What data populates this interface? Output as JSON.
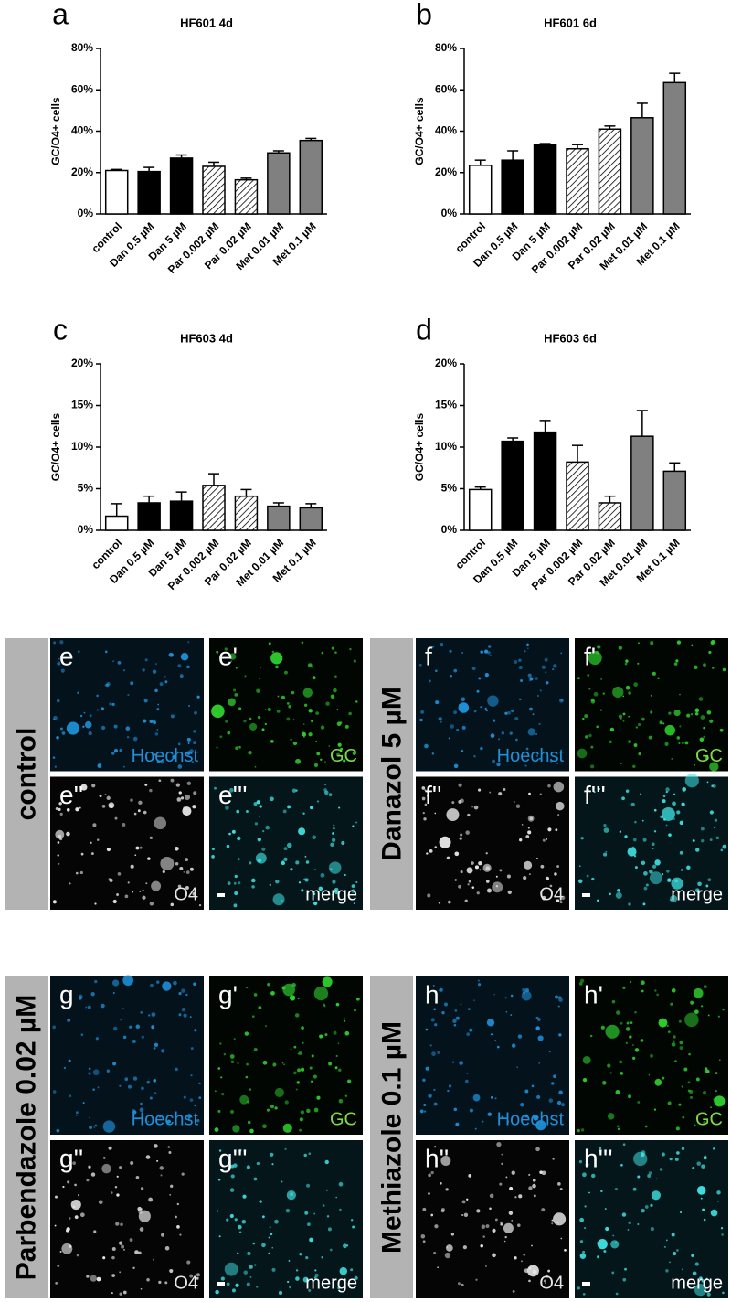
{
  "chart_data": [
    {
      "type": "bar",
      "panel": "a",
      "title": "HF601 4d",
      "y_label": "GC/O4+ cells",
      "categories": [
        "control",
        "Dan 0.5 µM",
        "Dan 5 µM",
        "Par 0.002 µM",
        "Par 0.02 µM",
        "Met 0.01 µM",
        "Met 0.1 µM"
      ],
      "values": [
        21,
        20.5,
        27,
        23,
        16.5,
        29.5,
        35.5
      ],
      "errors": [
        0.5,
        2,
        1.5,
        2,
        0.8,
        1,
        1
      ],
      "colors": [
        "#ffffff",
        "#000000",
        "#000000",
        "#ffffff",
        "#ffffff",
        "#808080",
        "#808080"
      ],
      "hatch": [
        false,
        false,
        false,
        true,
        true,
        false,
        false
      ],
      "ylim": [
        0,
        80
      ],
      "yticks": [
        {
          "value": 0,
          "label": "0%"
        },
        {
          "value": 20,
          "label": "20%"
        },
        {
          "value": 40,
          "label": "40%"
        },
        {
          "value": 60,
          "label": "60%"
        },
        {
          "value": 80,
          "label": "80%"
        }
      ]
    },
    {
      "type": "bar",
      "panel": "b",
      "title": "HF601 6d",
      "y_label": "GC/O4+ cells",
      "categories": [
        "control",
        "Dan 0.5 µM",
        "Dan 5 µM",
        "Par 0.002 µM",
        "Par 0.02 µM",
        "Met 0.01 µM",
        "Met 0.1 µM"
      ],
      "values": [
        23.5,
        26,
        33.5,
        31.5,
        41,
        46.5,
        63.5
      ],
      "errors": [
        2.5,
        4.5,
        0.5,
        2,
        1.5,
        7,
        4.5
      ],
      "colors": [
        "#ffffff",
        "#000000",
        "#000000",
        "#ffffff",
        "#ffffff",
        "#808080",
        "#808080"
      ],
      "hatch": [
        false,
        false,
        false,
        true,
        true,
        false,
        false
      ],
      "ylim": [
        0,
        80
      ],
      "yticks": [
        {
          "value": 0,
          "label": "0%"
        },
        {
          "value": 20,
          "label": "20%"
        },
        {
          "value": 40,
          "label": "40%"
        },
        {
          "value": 60,
          "label": "60%"
        },
        {
          "value": 80,
          "label": "80%"
        }
      ]
    },
    {
      "type": "bar",
      "panel": "c",
      "title": "HF603 4d",
      "y_label": "GC/O4+ cells",
      "categories": [
        "control",
        "Dan 0.5 µM",
        "Dan 5 µM",
        "Par 0.002 µM",
        "Par 0.02 µM",
        "Met 0.01 µM",
        "Met 0.1 µM"
      ],
      "values": [
        1.7,
        3.3,
        3.5,
        5.4,
        4.1,
        2.9,
        2.7
      ],
      "errors": [
        1.5,
        0.8,
        1.1,
        1.4,
        0.8,
        0.4,
        0.5
      ],
      "colors": [
        "#ffffff",
        "#000000",
        "#000000",
        "#ffffff",
        "#ffffff",
        "#808080",
        "#808080"
      ],
      "hatch": [
        false,
        false,
        false,
        true,
        true,
        false,
        false
      ],
      "ylim": [
        0,
        20
      ],
      "yticks": [
        {
          "value": 0,
          "label": "0%"
        },
        {
          "value": 5,
          "label": "5%"
        },
        {
          "value": 10,
          "label": "10%"
        },
        {
          "value": 15,
          "label": "15%"
        },
        {
          "value": 20,
          "label": "20%"
        }
      ]
    },
    {
      "type": "bar",
      "panel": "d",
      "title": "HF603 6d",
      "y_label": "GC/O4+ cells",
      "categories": [
        "control",
        "Dan 0.5 µM",
        "Dan 5 µM",
        "Par 0.002 µM",
        "Par 0.02 µM",
        "Met 0.01 µM",
        "Met 0.1 µM"
      ],
      "values": [
        4.9,
        10.7,
        11.8,
        8.2,
        3.3,
        11.3,
        7.1
      ],
      "errors": [
        0.3,
        0.4,
        1.4,
        2.0,
        0.8,
        3.1,
        1.0
      ],
      "colors": [
        "#ffffff",
        "#000000",
        "#000000",
        "#ffffff",
        "#ffffff",
        "#808080",
        "#808080"
      ],
      "hatch": [
        false,
        false,
        false,
        true,
        true,
        false,
        false
      ],
      "ylim": [
        0,
        20
      ],
      "yticks": [
        {
          "value": 0,
          "label": "0%"
        },
        {
          "value": 5,
          "label": "5%"
        },
        {
          "value": 10,
          "label": "10%"
        },
        {
          "value": 15,
          "label": "15%"
        },
        {
          "value": 20,
          "label": "20%"
        }
      ]
    }
  ],
  "micrographs": [
    {
      "condition": "control",
      "images": [
        {
          "label": "e",
          "stain": "Hoechst"
        },
        {
          "label": "e'",
          "stain": "GC"
        },
        {
          "label": "e''",
          "stain": "O4"
        },
        {
          "label": "e'''",
          "stain": "merge"
        }
      ]
    },
    {
      "condition": "Danazol 5 µM",
      "images": [
        {
          "label": "f",
          "stain": "Hoechst"
        },
        {
          "label": "f'",
          "stain": "GC"
        },
        {
          "label": "f''",
          "stain": "O4"
        },
        {
          "label": "f'''",
          "stain": "merge"
        }
      ]
    },
    {
      "condition": "Parbendazole 0.02 µM",
      "images": [
        {
          "label": "g",
          "stain": "Hoechst"
        },
        {
          "label": "g'",
          "stain": "GC"
        },
        {
          "label": "g''",
          "stain": "O4"
        },
        {
          "label": "g'''",
          "stain": "merge"
        }
      ]
    },
    {
      "condition": "Methiazole 0.1 µM",
      "images": [
        {
          "label": "h",
          "stain": "Hoechst"
        },
        {
          "label": "h'",
          "stain": "GC"
        },
        {
          "label": "h''",
          "stain": "O4"
        },
        {
          "label": "h'''",
          "stain": "merge"
        }
      ]
    }
  ]
}
